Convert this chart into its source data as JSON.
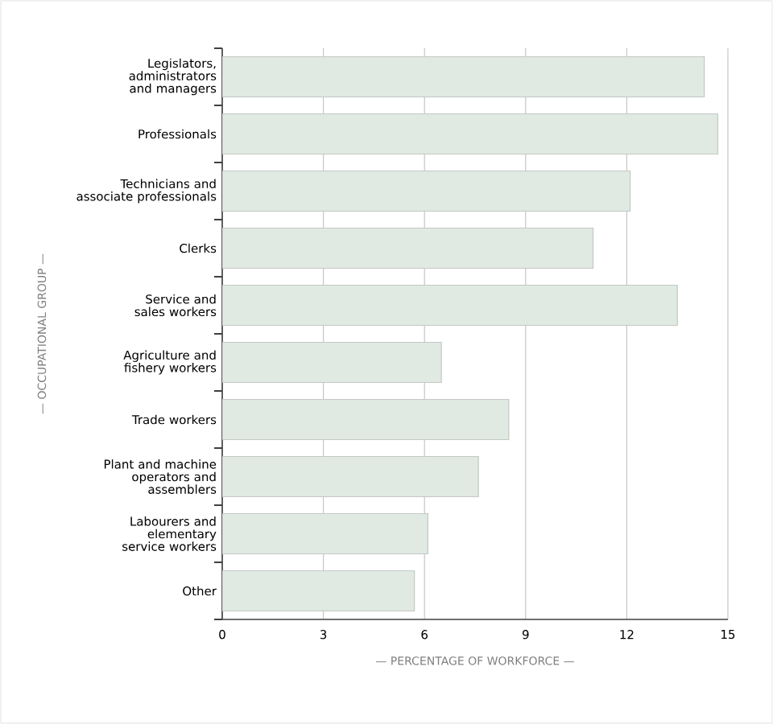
{
  "chart_data": {
    "type": "bar",
    "orientation": "horizontal",
    "categories": [
      "Legislators, administrators and managers",
      "Professionals",
      "Technicians and associate professionals",
      "Clerks",
      "Service and sales workers",
      "Agriculture and fishery workers",
      "Trade workers",
      "Plant and machine operators and assemblers",
      "Labourers and elementary service workers",
      "Other"
    ],
    "values": [
      14.3,
      14.7,
      12.1,
      11.0,
      13.5,
      6.5,
      8.5,
      7.6,
      6.1,
      5.7
    ],
    "color": "#e0e9e2",
    "xlim": [
      0,
      15
    ],
    "xticks": [
      0,
      3,
      6,
      9,
      12,
      15
    ],
    "xlabel": "— PERCENTAGE OF WORKFORCE —",
    "ylabel": "— OCCUPATIONAL GROUP —",
    "grid": "x"
  }
}
